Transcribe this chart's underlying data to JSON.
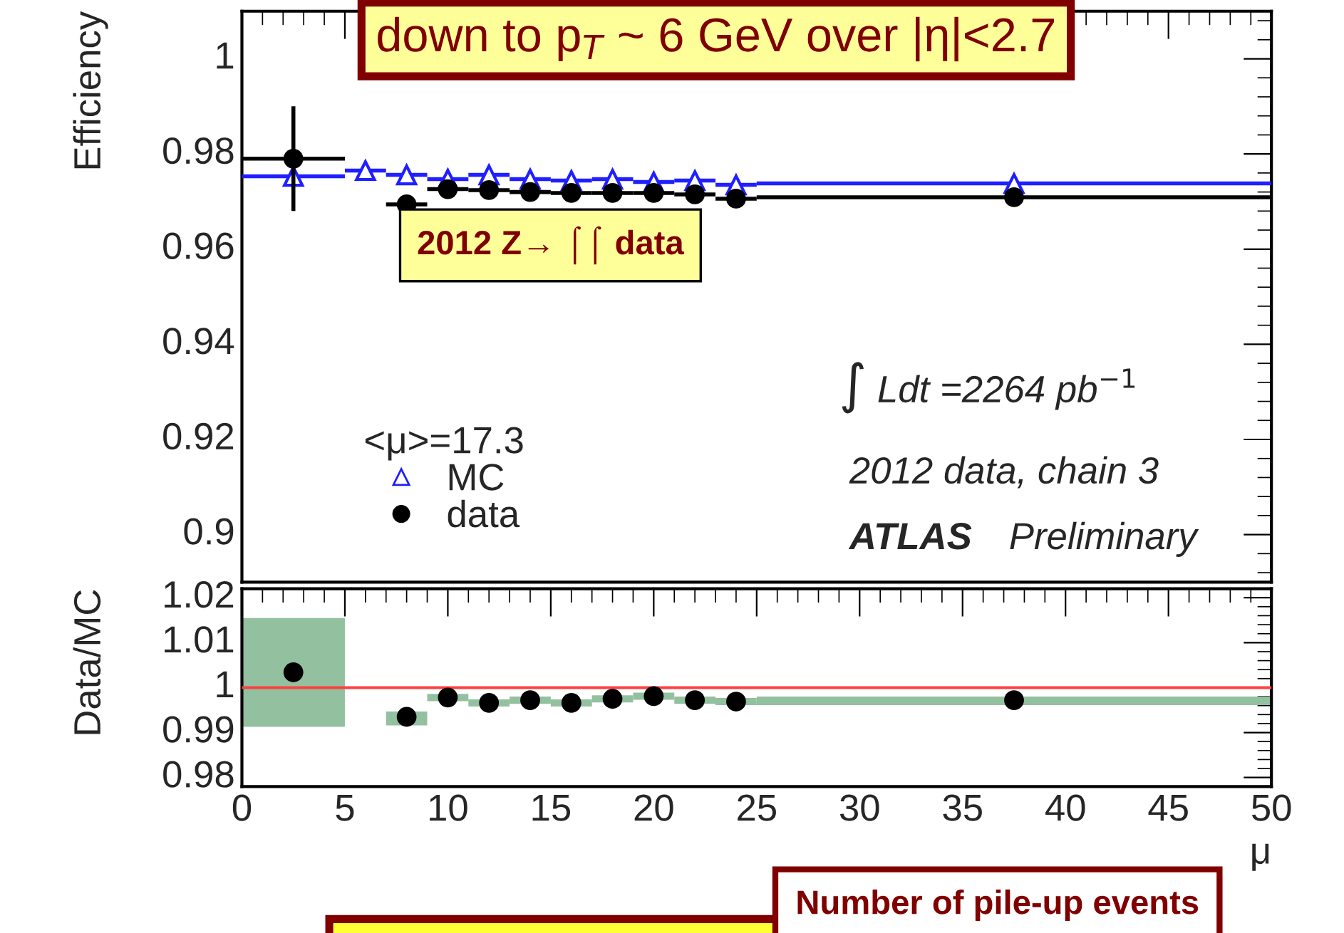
{
  "chart_data": [
    {
      "type": "scatter",
      "ylabel": "Efficiency",
      "xlim": [
        0,
        50
      ],
      "xticks": [
        {
          "value": 0,
          "label": null
        },
        {
          "value": 5,
          "label": null
        },
        {
          "value": 10,
          "label": null
        },
        {
          "value": 15,
          "label": null
        },
        {
          "value": 20,
          "label": null
        },
        {
          "value": 25,
          "label": null
        },
        {
          "value": 30,
          "label": null
        },
        {
          "value": 35,
          "label": null
        },
        {
          "value": 40,
          "label": null
        },
        {
          "value": 45,
          "label": null
        },
        {
          "value": 50,
          "label": null
        }
      ],
      "ylim": [
        0.89,
        1.01
      ],
      "yticks": [
        0.9,
        0.92,
        0.94,
        0.96,
        0.98,
        1
      ],
      "tick_labels": "y",
      "legend": "lower left",
      "legend_title": "<μ>=17.3",
      "annotations": [
        "down to p$_{T}$ ~ 6 GeV over |η|<2.7",
        "2012 Z→ ⌠⌠ data",
        "∫ Ldt =2264 pb$^{−1}$",
        "2012 data, chain 3",
        "ATLAS",
        "Preliminary"
      ],
      "series": [
        {
          "name": "MC",
          "marker": "triangle",
          "color": "#1f1fff",
          "x": [
            2.5,
            6,
            8,
            10,
            12,
            14,
            16,
            18,
            20,
            22,
            24,
            37.5
          ],
          "values": [
            0.9753,
            0.9765,
            0.9756,
            0.9747,
            0.9756,
            0.9747,
            0.9744,
            0.9747,
            0.9741,
            0.9744,
            0.9735,
            0.9738
          ],
          "xerrors": [
            2.5,
            1,
            1,
            1,
            1,
            1,
            1,
            1,
            1,
            1,
            1,
            12.5
          ]
        },
        {
          "name": "data",
          "marker": "circle",
          "color": "#000000",
          "x": [
            2.5,
            8,
            10,
            12,
            14,
            16,
            18,
            20,
            22,
            24,
            37.5
          ],
          "values": [
            0.979,
            0.9694,
            0.9726,
            0.9724,
            0.972,
            0.9718,
            0.9718,
            0.9718,
            0.9715,
            0.9706,
            0.9709
          ],
          "xerrors": [
            2.5,
            1,
            1,
            1,
            1,
            1,
            1,
            1,
            1,
            1,
            12.5
          ],
          "errors": [
            0.011,
            null,
            null,
            null,
            null,
            null,
            null,
            null,
            null,
            null,
            null
          ]
        }
      ]
    },
    {
      "type": "scatter",
      "ylabel": "Data/MC",
      "xlabel": "μ",
      "xlim": [
        0,
        50
      ],
      "xticks": [
        0,
        5,
        10,
        15,
        20,
        25,
        30,
        35,
        40,
        45,
        50
      ],
      "ylim": [
        0.978,
        1.022
      ],
      "yticks": [
        0.98,
        0.99,
        1,
        1.01,
        1.02
      ],
      "ref_lines": [
        {
          "axis": "y",
          "value": 1,
          "color": "#ff4040"
        }
      ],
      "annotations": [
        "Number of pile-up events"
      ],
      "series": [
        {
          "type": "histogram",
          "color": "#93c09f",
          "bins": [
            0,
            5,
            7,
            9,
            11,
            13,
            15,
            17,
            19,
            21,
            23,
            25,
            50
          ],
          "base": [
            0.9913,
            null,
            0.9916,
            0.997,
            0.9958,
            0.9964,
            0.9958,
            0.9967,
            0.9973,
            0.9964,
            0.9961,
            0.9961
          ],
          "values": [
            0.0242,
            null,
            0.0031,
            0.0016,
            0.0016,
            0.0016,
            0.0016,
            0.0016,
            0.0016,
            0.0016,
            0.0016,
            0.0019
          ]
        },
        {
          "marker": "circle",
          "color": "#000000",
          "x": [
            2.5,
            8,
            10,
            12,
            14,
            16,
            18,
            20,
            22,
            24,
            37.5
          ],
          "values": [
            1.0034,
            0.9935,
            0.9978,
            0.9966,
            0.9972,
            0.9966,
            0.9975,
            0.9981,
            0.9972,
            0.9969,
            0.9972
          ]
        }
      ]
    }
  ]
}
